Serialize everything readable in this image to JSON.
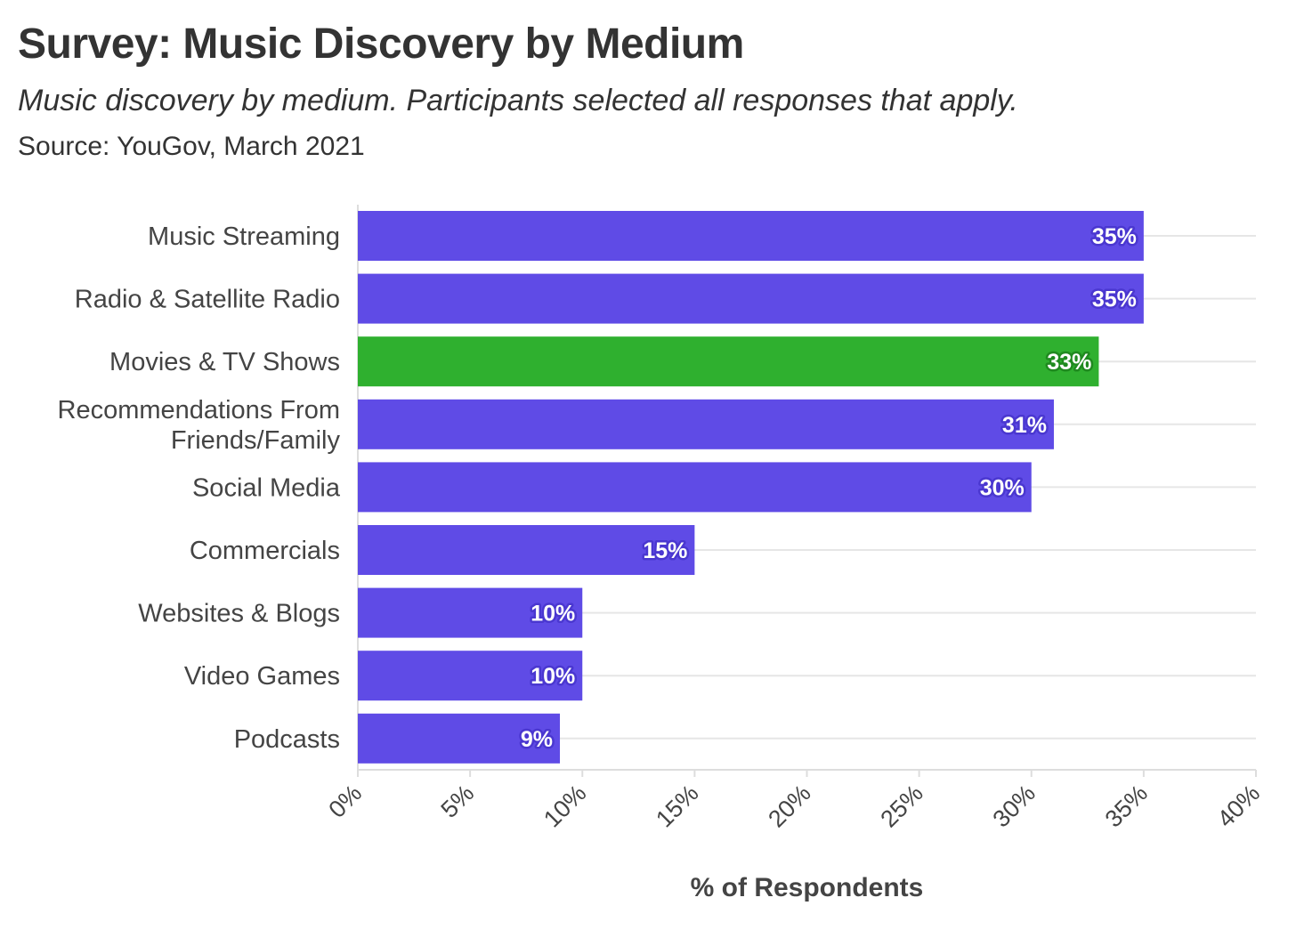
{
  "chart_data": {
    "type": "bar",
    "orientation": "horizontal",
    "title": "Survey: Music Discovery by Medium",
    "subtitle": "Music discovery by medium. Participants selected all responses that apply.",
    "source": "Source: YouGov, March 2021",
    "xlabel": "% of Respondents",
    "ylabel": "",
    "xlim": [
      0,
      40
    ],
    "grid": true,
    "categories": [
      "Music Streaming",
      "Radio & Satellite Radio",
      "Movies & TV Shows",
      "Recommendations From Friends/Family",
      "Social Media",
      "Commercials",
      "Websites & Blogs",
      "Video Games",
      "Podcasts"
    ],
    "category_lines": [
      [
        "Music Streaming"
      ],
      [
        "Radio & Satellite Radio"
      ],
      [
        "Movies & TV Shows"
      ],
      [
        "Recommendations From",
        "Friends/Family"
      ],
      [
        "Social Media"
      ],
      [
        "Commercials"
      ],
      [
        "Websites & Blogs"
      ],
      [
        "Video Games"
      ],
      [
        "Podcasts"
      ]
    ],
    "values": [
      35,
      35,
      33,
      31,
      30,
      15,
      10,
      10,
      9
    ],
    "data_labels": [
      "35%",
      "35%",
      "33%",
      "31%",
      "30%",
      "15%",
      "10%",
      "10%",
      "9%"
    ],
    "highlight_index": 2,
    "ticks": [
      0,
      5,
      10,
      15,
      20,
      25,
      30,
      35,
      40
    ],
    "tick_labels": [
      "0%",
      "5%",
      "10%",
      "15%",
      "20%",
      "25%",
      "30%",
      "35%",
      "40%"
    ],
    "colors": {
      "bar": "#5f4be6",
      "bar_outline": "#4a37d0",
      "highlight": "#2fb02f",
      "highlight_outline": "#1f8a1f",
      "grid": "#e6e6e6",
      "axis": "#dddddd"
    }
  }
}
